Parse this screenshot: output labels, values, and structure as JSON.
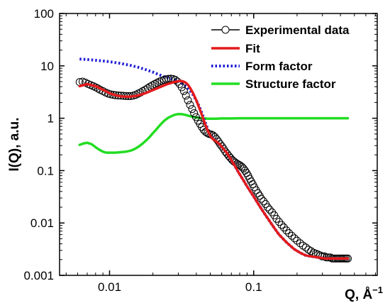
{
  "chart_data": {
    "type": "line",
    "xlabel": "Q, Å",
    "xlabel_exponent": "−1",
    "ylabel": "I(Q), a.u.",
    "x_scale": "log",
    "y_scale": "log",
    "xlim": [
      0.0045,
      0.72
    ],
    "ylim": [
      0.001,
      100
    ],
    "grid": false,
    "legend_position": "top-right",
    "x_ticks": [
      {
        "value": 0.01,
        "label": "0.01"
      },
      {
        "value": 0.1,
        "label": "0.1"
      }
    ],
    "y_ticks": [
      {
        "value": 100,
        "label": "100"
      },
      {
        "value": 10,
        "label": "10"
      },
      {
        "value": 1,
        "label": "1"
      },
      {
        "value": 0.1,
        "label": "0.1"
      },
      {
        "value": 0.01,
        "label": "0.01"
      },
      {
        "value": 0.001,
        "label": "0.001"
      }
    ],
    "series": [
      {
        "name": "Experimental data",
        "style": "open-circles",
        "color": "#000000",
        "x": [
          0.0062,
          0.0065,
          0.0068,
          0.0071,
          0.0074,
          0.0077,
          0.008,
          0.0083,
          0.0086,
          0.009,
          0.0094,
          0.0098,
          0.0102,
          0.0106,
          0.011,
          0.0115,
          0.012,
          0.0125,
          0.013,
          0.0135,
          0.014,
          0.0146,
          0.0152,
          0.0158,
          0.0164,
          0.017,
          0.0177,
          0.0184,
          0.0191,
          0.0198,
          0.0206,
          0.0214,
          0.0222,
          0.023,
          0.0239,
          0.0248,
          0.0257,
          0.0266,
          0.0276,
          0.0286,
          0.0296,
          0.0306,
          0.0317,
          0.0328,
          0.0339,
          0.035,
          0.0362,
          0.0374,
          0.0386,
          0.0398,
          0.0411,
          0.0424,
          0.0437,
          0.045,
          0.0464,
          0.0478,
          0.0492,
          0.0507,
          0.0522,
          0.0537,
          0.0553,
          0.0569,
          0.0585,
          0.0602,
          0.0619,
          0.0636,
          0.0654,
          0.0672,
          0.069,
          0.0709,
          0.0728,
          0.0747,
          0.0767,
          0.0787,
          0.0807,
          0.0828,
          0.0849,
          0.0871,
          0.0893,
          0.0915,
          0.0938,
          0.0961,
          0.0985,
          0.101,
          0.104,
          0.107,
          0.11,
          0.113,
          0.117,
          0.121,
          0.125,
          0.129,
          0.134,
          0.139,
          0.144,
          0.15,
          0.156,
          0.162,
          0.169,
          0.176,
          0.184,
          0.192,
          0.2,
          0.21,
          0.22,
          0.23,
          0.24,
          0.25,
          0.26,
          0.27,
          0.28,
          0.29,
          0.3,
          0.31,
          0.32,
          0.33,
          0.34,
          0.35,
          0.36,
          0.37,
          0.38,
          0.39,
          0.4,
          0.41,
          0.42,
          0.43,
          0.44,
          0.45
        ],
        "y": [
          4.9,
          5.0,
          4.8,
          4.5,
          4.3,
          4.1,
          3.9,
          3.7,
          3.5,
          3.3,
          3.1,
          2.95,
          2.85,
          2.8,
          2.75,
          2.72,
          2.7,
          2.68,
          2.66,
          2.65,
          2.65,
          2.7,
          2.8,
          2.95,
          3.1,
          3.3,
          3.5,
          3.75,
          4.0,
          4.25,
          4.5,
          4.75,
          5.0,
          5.2,
          5.4,
          5.55,
          5.65,
          5.7,
          5.6,
          5.4,
          5.0,
          4.5,
          3.9,
          3.3,
          2.7,
          2.2,
          1.8,
          1.5,
          1.25,
          1.05,
          0.9,
          0.78,
          0.68,
          0.6,
          0.55,
          0.52,
          0.5,
          0.49,
          0.47,
          0.44,
          0.4,
          0.36,
          0.32,
          0.29,
          0.26,
          0.23,
          0.21,
          0.19,
          0.175,
          0.16,
          0.15,
          0.142,
          0.135,
          0.13,
          0.125,
          0.118,
          0.11,
          0.1,
          0.09,
          0.08,
          0.07,
          0.062,
          0.055,
          0.048,
          0.042,
          0.037,
          0.033,
          0.029,
          0.026,
          0.023,
          0.02,
          0.018,
          0.016,
          0.014,
          0.012,
          0.0105,
          0.0092,
          0.0082,
          0.0072,
          0.0064,
          0.0057,
          0.0051,
          0.0046,
          0.0041,
          0.0037,
          0.0034,
          0.0031,
          0.0029,
          0.0027,
          0.0026,
          0.0025,
          0.0024,
          0.0023,
          0.0023,
          0.0022,
          0.0022,
          0.0022,
          0.0021,
          0.0021,
          0.0021,
          0.0021,
          0.0021,
          0.0021,
          0.0021,
          0.0021,
          0.0021,
          0.0021,
          0.0021
        ]
      },
      {
        "name": "Fit",
        "style": "solid",
        "color": "#e41a1c",
        "x": [
          0.0062,
          0.007,
          0.008,
          0.009,
          0.01,
          0.011,
          0.012,
          0.013,
          0.014,
          0.015,
          0.016,
          0.017,
          0.018,
          0.019,
          0.02,
          0.021,
          0.022,
          0.023,
          0.024,
          0.025,
          0.026,
          0.027,
          0.028,
          0.029,
          0.03,
          0.031,
          0.032,
          0.033,
          0.034,
          0.035,
          0.036,
          0.038,
          0.04,
          0.042,
          0.044,
          0.046,
          0.048,
          0.05,
          0.052,
          0.055,
          0.058,
          0.061,
          0.065,
          0.07,
          0.075,
          0.08,
          0.085,
          0.09,
          0.1,
          0.11,
          0.12,
          0.13,
          0.14,
          0.15,
          0.17,
          0.19,
          0.21,
          0.23,
          0.25,
          0.28,
          0.31,
          0.35,
          0.4,
          0.45
        ],
        "y": [
          4.1,
          4.5,
          4.1,
          3.5,
          3.0,
          2.75,
          2.62,
          2.58,
          2.6,
          2.65,
          2.75,
          2.9,
          3.05,
          3.25,
          3.45,
          3.65,
          3.85,
          4.05,
          4.25,
          4.45,
          4.6,
          4.75,
          4.9,
          5.0,
          5.1,
          5.15,
          5.1,
          4.95,
          4.7,
          4.35,
          3.9,
          3.0,
          2.2,
          1.55,
          1.1,
          0.78,
          0.58,
          0.46,
          0.4,
          0.36,
          0.32,
          0.27,
          0.22,
          0.16,
          0.115,
          0.085,
          0.065,
          0.05,
          0.032,
          0.021,
          0.0145,
          0.0105,
          0.0078,
          0.006,
          0.0042,
          0.0032,
          0.0027,
          0.0024,
          0.0023,
          0.0022,
          0.0021,
          0.0021,
          0.0021,
          0.0021
        ]
      },
      {
        "name": "Form factor",
        "style": "dotted",
        "color": "#1f1fd6",
        "x": [
          0.0062,
          0.007,
          0.008,
          0.009,
          0.01,
          0.012,
          0.014,
          0.016,
          0.018,
          0.02,
          0.022,
          0.024,
          0.026,
          0.028,
          0.03,
          0.032,
          0.034,
          0.036,
          0.038,
          0.04,
          0.042,
          0.044,
          0.046,
          0.048,
          0.05,
          0.052,
          0.055,
          0.058,
          0.061,
          0.065,
          0.07,
          0.075,
          0.08,
          0.085,
          0.09,
          0.1,
          0.11,
          0.12,
          0.13,
          0.14,
          0.15,
          0.17,
          0.19,
          0.21,
          0.23,
          0.25,
          0.28,
          0.31,
          0.35,
          0.4,
          0.45
        ],
        "y": [
          13.5,
          13.2,
          12.8,
          12.4,
          12.0,
          11.1,
          10.2,
          9.3,
          8.4,
          7.6,
          6.8,
          6.2,
          5.8,
          5.5,
          5.1,
          4.6,
          4.0,
          3.4,
          2.8,
          2.2,
          1.65,
          1.2,
          0.85,
          0.62,
          0.48,
          0.41,
          0.36,
          0.32,
          0.27,
          0.22,
          0.16,
          0.115,
          0.085,
          0.065,
          0.05,
          0.032,
          0.021,
          0.0145,
          0.0105,
          0.0078,
          0.006,
          0.0042,
          0.0032,
          0.0027,
          0.0024,
          0.0023,
          0.0022,
          0.0021,
          0.0021,
          0.0021,
          0.0021
        ]
      },
      {
        "name": "Structure factor",
        "style": "solid",
        "color": "#22dd22",
        "x": [
          0.0062,
          0.0066,
          0.007,
          0.0075,
          0.008,
          0.0085,
          0.009,
          0.0095,
          0.01,
          0.011,
          0.012,
          0.013,
          0.014,
          0.015,
          0.016,
          0.017,
          0.018,
          0.019,
          0.02,
          0.021,
          0.022,
          0.023,
          0.024,
          0.025,
          0.026,
          0.027,
          0.028,
          0.029,
          0.03,
          0.031,
          0.032,
          0.033,
          0.034,
          0.035,
          0.036,
          0.038,
          0.04,
          0.042,
          0.044,
          0.046,
          0.048,
          0.05,
          0.055,
          0.06,
          0.07,
          0.08,
          0.1,
          0.15,
          0.2,
          0.3,
          0.45
        ],
        "y": [
          0.31,
          0.33,
          0.34,
          0.32,
          0.28,
          0.25,
          0.23,
          0.22,
          0.22,
          0.22,
          0.225,
          0.23,
          0.24,
          0.26,
          0.29,
          0.33,
          0.38,
          0.44,
          0.52,
          0.6,
          0.7,
          0.8,
          0.9,
          0.98,
          1.05,
          1.1,
          1.15,
          1.18,
          1.2,
          1.2,
          1.19,
          1.17,
          1.15,
          1.12,
          1.1,
          1.06,
          1.03,
          1.01,
          1.0,
          0.99,
          0.98,
          0.98,
          0.98,
          0.99,
          0.99,
          1.0,
          1.0,
          1.0,
          1.0,
          1.0,
          1.0
        ]
      }
    ]
  }
}
